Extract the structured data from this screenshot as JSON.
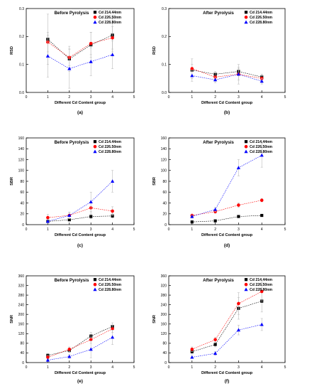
{
  "figure": {
    "legend_labels": [
      "Cd 214.44nm",
      "Cd 226.50nm",
      "Cd 228.80nm"
    ],
    "colors": [
      "#000000",
      "#ff0000",
      "#0000ff"
    ]
  },
  "chart_data": [
    {
      "type": "line",
      "panel": "(a)",
      "title": "Before Pyrolysis",
      "xlabel": "Different Cd Content group",
      "ylabel": "RSD",
      "xlim": [
        0,
        5
      ],
      "ylim": [
        0,
        0.3
      ],
      "xticks": [
        "0",
        "1",
        "2",
        "3",
        "4",
        "5"
      ],
      "yticks": [
        "0.0",
        "0.1",
        "0.2",
        "0.3"
      ],
      "legend_position": "top-right",
      "x": [
        1,
        2,
        3,
        4
      ],
      "series": [
        {
          "name": "Cd 214.44nm",
          "values": [
            0.19,
            0.12,
            0.17,
            0.205
          ],
          "errors": [
            0.09,
            0.045,
            0.045,
            0.06
          ]
        },
        {
          "name": "Cd 226.50nm",
          "values": [
            0.18,
            0.125,
            0.175,
            0.195
          ],
          "errors": [
            0.035,
            0.03,
            0.04,
            0.04
          ]
        },
        {
          "name": "Cd 228.80nm",
          "values": [
            0.13,
            0.085,
            0.11,
            0.135
          ],
          "errors": [
            0.075,
            0.07,
            0.05,
            0.05
          ]
        }
      ]
    },
    {
      "type": "line",
      "panel": "(b)",
      "title": "After Pyrolysis",
      "xlabel": "Different Cd Content group",
      "ylabel": "RSD",
      "xlim": [
        0,
        5
      ],
      "ylim": [
        0,
        0.3
      ],
      "xticks": [
        "0",
        "1",
        "2",
        "3",
        "4",
        "5"
      ],
      "yticks": [
        "0.0",
        "0.1",
        "0.2",
        "0.3"
      ],
      "legend_position": "top-right",
      "x": [
        1,
        2,
        3,
        4
      ],
      "series": [
        {
          "name": "Cd 214.44nm",
          "values": [
            0.08,
            0.065,
            0.075,
            0.055
          ],
          "errors": [
            0.02,
            0.01,
            0.015,
            0.01
          ]
        },
        {
          "name": "Cd 226.50nm",
          "values": [
            0.085,
            0.055,
            0.065,
            0.05
          ],
          "errors": [
            0.035,
            0.015,
            0.035,
            0.015
          ]
        },
        {
          "name": "Cd 228.80nm",
          "values": [
            0.06,
            0.045,
            0.065,
            0.04
          ],
          "errors": [
            0.02,
            0.01,
            0.02,
            0.01
          ]
        }
      ]
    },
    {
      "type": "line",
      "panel": "(c)",
      "title": "Before Pyrolysis",
      "xlabel": "Different Cd Content group",
      "ylabel": "SBR",
      "xlim": [
        0,
        5
      ],
      "ylim": [
        0,
        160
      ],
      "xticks": [
        "0",
        "1",
        "2",
        "3",
        "4",
        "5"
      ],
      "yticks": [
        "0",
        "20",
        "40",
        "60",
        "80",
        "100",
        "120",
        "140",
        "160"
      ],
      "legend_position": "top-right",
      "x": [
        1,
        2,
        3,
        4
      ],
      "series": [
        {
          "name": "Cd 214.44nm",
          "values": [
            6,
            9,
            15,
            16
          ],
          "errors": [
            2,
            2,
            4,
            4
          ]
        },
        {
          "name": "Cd 226.50nm",
          "values": [
            13,
            17,
            31,
            25
          ],
          "errors": [
            6,
            6,
            10,
            8
          ]
        },
        {
          "name": "Cd 228.80nm",
          "values": [
            6,
            17,
            42,
            80
          ],
          "errors": [
            3,
            6,
            18,
            20
          ]
        }
      ]
    },
    {
      "type": "line",
      "panel": "(d)",
      "title": "After Pyrolysis",
      "xlabel": "Different Cd Content group",
      "ylabel": "SBR",
      "xlim": [
        0,
        5
      ],
      "ylim": [
        0,
        160
      ],
      "xticks": [
        "0",
        "1",
        "2",
        "3",
        "4",
        "5"
      ],
      "yticks": [
        "0",
        "20",
        "40",
        "60",
        "80",
        "100",
        "120",
        "140",
        "160"
      ],
      "legend_position": "top-right",
      "x": [
        1,
        2,
        3,
        4
      ],
      "series": [
        {
          "name": "Cd 214.44nm",
          "values": [
            5,
            7,
            15,
            17
          ],
          "errors": [
            1,
            1,
            2,
            2
          ]
        },
        {
          "name": "Cd 226.50nm",
          "values": [
            17,
            24,
            36,
            45
          ],
          "errors": [
            2,
            3,
            4,
            3
          ]
        },
        {
          "name": "Cd 228.80nm",
          "values": [
            15,
            28,
            105,
            128
          ],
          "errors": [
            3,
            4,
            15,
            22
          ]
        }
      ]
    },
    {
      "type": "line",
      "panel": "(e)",
      "title": "Before Pyrolysis",
      "xlabel": "Different Cd Content group",
      "ylabel": "SNR",
      "xlim": [
        0,
        5
      ],
      "ylim": [
        0,
        360
      ],
      "xticks": [
        "0",
        "1",
        "2",
        "3",
        "4",
        "5"
      ],
      "yticks": [
        "0",
        "40",
        "80",
        "120",
        "160",
        "200",
        "240",
        "280",
        "320",
        "360"
      ],
      "legend_position": "top-right",
      "x": [
        1,
        2,
        3,
        4
      ],
      "series": [
        {
          "name": "Cd 214.44nm",
          "values": [
            30,
            50,
            110,
            150
          ],
          "errors": [
            6,
            8,
            15,
            15
          ]
        },
        {
          "name": "Cd 226.50nm",
          "values": [
            22,
            55,
            95,
            140
          ],
          "errors": [
            8,
            10,
            15,
            15
          ]
        },
        {
          "name": "Cd 228.80nm",
          "values": [
            10,
            25,
            55,
            105
          ],
          "errors": [
            5,
            8,
            35,
            30
          ]
        }
      ]
    },
    {
      "type": "line",
      "panel": "(f)",
      "title": "After Pyrolysis",
      "xlabel": "Different Cd Content group",
      "ylabel": "SNR",
      "xlim": [
        0,
        5
      ],
      "ylim": [
        0,
        360
      ],
      "xticks": [
        "0",
        "1",
        "2",
        "3",
        "4",
        "5"
      ],
      "yticks": [
        "0",
        "40",
        "80",
        "120",
        "160",
        "200",
        "240",
        "280",
        "320",
        "360"
      ],
      "legend_position": "top-right",
      "x": [
        1,
        2,
        3,
        4
      ],
      "series": [
        {
          "name": "Cd 214.44nm",
          "values": [
            45,
            75,
            225,
            255
          ],
          "errors": [
            10,
            10,
            45,
            45
          ]
        },
        {
          "name": "Cd 226.50nm",
          "values": [
            55,
            95,
            245,
            295
          ],
          "errors": [
            10,
            10,
            45,
            40
          ]
        },
        {
          "name": "Cd 228.80nm",
          "values": [
            22,
            38,
            135,
            158
          ],
          "errors": [
            5,
            8,
            20,
            25
          ]
        }
      ]
    }
  ]
}
